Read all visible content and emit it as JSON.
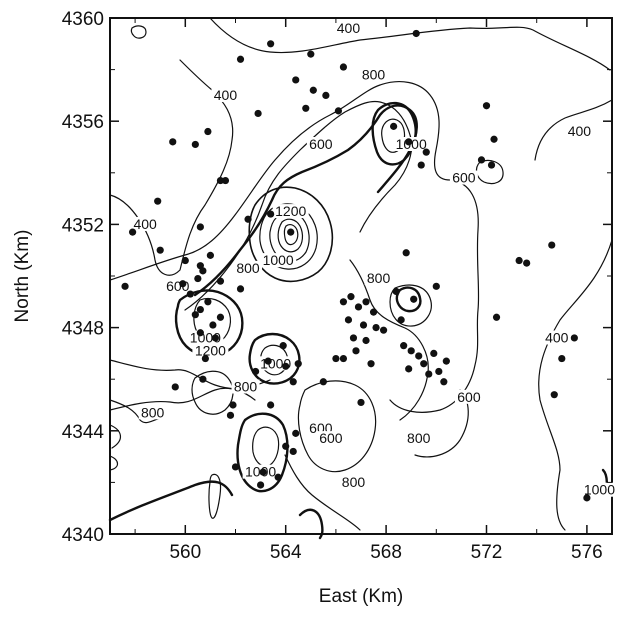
{
  "chart_data": {
    "type": "contour",
    "xlabel": "East (Km)",
    "ylabel": "North (Km)",
    "xlim": [
      557,
      577
    ],
    "ylim": [
      4340,
      4360
    ],
    "x_ticks": [
      560,
      564,
      568,
      572,
      576
    ],
    "y_ticks": [
      4340,
      4344,
      4348,
      4352,
      4356,
      4360
    ],
    "grid": false,
    "contour_levels_labeled": [
      400,
      600,
      800,
      1000,
      1200
    ],
    "contour_labels": [
      {
        "text": "400",
        "x": 566.5,
        "y": 4359.5
      },
      {
        "text": "400",
        "x": 561.6,
        "y": 4356.9
      },
      {
        "text": "400",
        "x": 558.4,
        "y": 4351.9
      },
      {
        "text": "400",
        "x": 575.7,
        "y": 4355.5
      },
      {
        "text": "400",
        "x": 574.8,
        "y": 4347.5
      },
      {
        "text": "800",
        "x": 567.5,
        "y": 4357.7
      },
      {
        "text": "600",
        "x": 565.4,
        "y": 4355.0
      },
      {
        "text": "1000",
        "x": 569.0,
        "y": 4355.0
      },
      {
        "text": "600",
        "x": 571.1,
        "y": 4353.7
      },
      {
        "text": "600",
        "x": 559.7,
        "y": 4349.5
      },
      {
        "text": "1200",
        "x": 564.2,
        "y": 4352.4
      },
      {
        "text": "1000",
        "x": 563.7,
        "y": 4350.5
      },
      {
        "text": "800",
        "x": 562.5,
        "y": 4350.2
      },
      {
        "text": "800",
        "x": 567.7,
        "y": 4349.8
      },
      {
        "text": "1000",
        "x": 560.8,
        "y": 4347.5
      },
      {
        "text": "1200",
        "x": 561.0,
        "y": 4347.0
      },
      {
        "text": "1000",
        "x": 563.6,
        "y": 4346.5
      },
      {
        "text": "800",
        "x": 562.4,
        "y": 4345.6
      },
      {
        "text": "800",
        "x": 558.7,
        "y": 4344.6
      },
      {
        "text": "600",
        "x": 565.4,
        "y": 4344.0
      },
      {
        "text": "600",
        "x": 565.8,
        "y": 4343.6
      },
      {
        "text": "1000",
        "x": 563.0,
        "y": 4342.3
      },
      {
        "text": "800",
        "x": 566.7,
        "y": 4341.9
      },
      {
        "text": "600",
        "x": 571.3,
        "y": 4345.2
      },
      {
        "text": "800",
        "x": 569.3,
        "y": 4343.6
      },
      {
        "text": "1000",
        "x": 576.5,
        "y": 4341.6
      }
    ],
    "points": [
      [
        563.4,
        4359.0
      ],
      [
        565.0,
        4358.6
      ],
      [
        566.3,
        4358.1
      ],
      [
        562.2,
        4358.4
      ],
      [
        569.2,
        4359.4
      ],
      [
        564.4,
        4357.6
      ],
      [
        565.1,
        4357.2
      ],
      [
        565.6,
        4357.0
      ],
      [
        564.8,
        4356.5
      ],
      [
        566.1,
        4356.4
      ],
      [
        562.9,
        4356.3
      ],
      [
        559.5,
        4355.2
      ],
      [
        560.4,
        4355.1
      ],
      [
        560.9,
        4355.6
      ],
      [
        561.4,
        4353.7
      ],
      [
        561.6,
        4353.7
      ],
      [
        558.9,
        4352.9
      ],
      [
        560.6,
        4351.9
      ],
      [
        557.9,
        4351.7
      ],
      [
        572.0,
        4356.6
      ],
      [
        568.3,
        4355.8
      ],
      [
        568.9,
        4355.2
      ],
      [
        569.6,
        4354.8
      ],
      [
        569.4,
        4354.3
      ],
      [
        571.8,
        4354.5
      ],
      [
        572.3,
        4355.3
      ],
      [
        572.2,
        4354.3
      ],
      [
        562.5,
        4352.2
      ],
      [
        564.2,
        4351.7
      ],
      [
        563.4,
        4352.4
      ],
      [
        559.0,
        4351.0
      ],
      [
        560.0,
        4350.6
      ],
      [
        560.6,
        4350.4
      ],
      [
        560.7,
        4350.2
      ],
      [
        561.0,
        4350.8
      ],
      [
        561.4,
        4349.8
      ],
      [
        560.5,
        4349.9
      ],
      [
        559.9,
        4349.7
      ],
      [
        560.2,
        4349.3
      ],
      [
        557.6,
        4349.6
      ],
      [
        562.2,
        4349.5
      ],
      [
        560.9,
        4349.0
      ],
      [
        560.6,
        4348.7
      ],
      [
        560.4,
        4348.5
      ],
      [
        561.4,
        4348.4
      ],
      [
        561.1,
        4348.1
      ],
      [
        560.6,
        4347.8
      ],
      [
        561.2,
        4347.6
      ],
      [
        560.8,
        4346.8
      ],
      [
        563.9,
        4347.3
      ],
      [
        564.0,
        4346.5
      ],
      [
        563.3,
        4346.7
      ],
      [
        564.5,
        4346.6
      ],
      [
        562.8,
        4346.3
      ],
      [
        564.3,
        4345.9
      ],
      [
        566.3,
        4349.0
      ],
      [
        566.6,
        4349.2
      ],
      [
        566.9,
        4348.8
      ],
      [
        567.2,
        4349.0
      ],
      [
        567.5,
        4348.6
      ],
      [
        566.5,
        4348.3
      ],
      [
        567.1,
        4348.1
      ],
      [
        567.6,
        4348.0
      ],
      [
        566.7,
        4347.6
      ],
      [
        567.2,
        4347.5
      ],
      [
        566.8,
        4347.1
      ],
      [
        566.3,
        4346.8
      ],
      [
        567.4,
        4346.6
      ],
      [
        567.9,
        4347.9
      ],
      [
        566.0,
        4346.8
      ],
      [
        568.4,
        4349.4
      ],
      [
        569.1,
        4349.1
      ],
      [
        570.0,
        4349.6
      ],
      [
        572.4,
        4348.4
      ],
      [
        568.6,
        4348.3
      ],
      [
        568.7,
        4347.3
      ],
      [
        569.0,
        4347.1
      ],
      [
        569.3,
        4346.9
      ],
      [
        569.5,
        4346.6
      ],
      [
        569.9,
        4347.0
      ],
      [
        570.1,
        4346.3
      ],
      [
        570.4,
        4346.7
      ],
      [
        569.7,
        4346.2
      ],
      [
        570.3,
        4345.9
      ],
      [
        568.9,
        4346.4
      ],
      [
        568.8,
        4350.9
      ],
      [
        573.3,
        4350.6
      ],
      [
        573.6,
        4350.5
      ],
      [
        574.6,
        4351.2
      ],
      [
        575.5,
        4347.6
      ],
      [
        575.0,
        4346.8
      ],
      [
        574.7,
        4345.4
      ],
      [
        559.6,
        4345.7
      ],
      [
        560.7,
        4346.0
      ],
      [
        561.9,
        4345.0
      ],
      [
        561.8,
        4344.6
      ],
      [
        567.0,
        4345.1
      ],
      [
        565.5,
        4345.9
      ],
      [
        563.4,
        4345.0
      ],
      [
        562.0,
        4342.6
      ],
      [
        563.1,
        4342.4
      ],
      [
        564.0,
        4343.4
      ],
      [
        564.4,
        4343.9
      ],
      [
        564.3,
        4343.2
      ],
      [
        563.7,
        4342.2
      ],
      [
        563.0,
        4341.9
      ],
      [
        576.0,
        4341.4
      ]
    ]
  }
}
